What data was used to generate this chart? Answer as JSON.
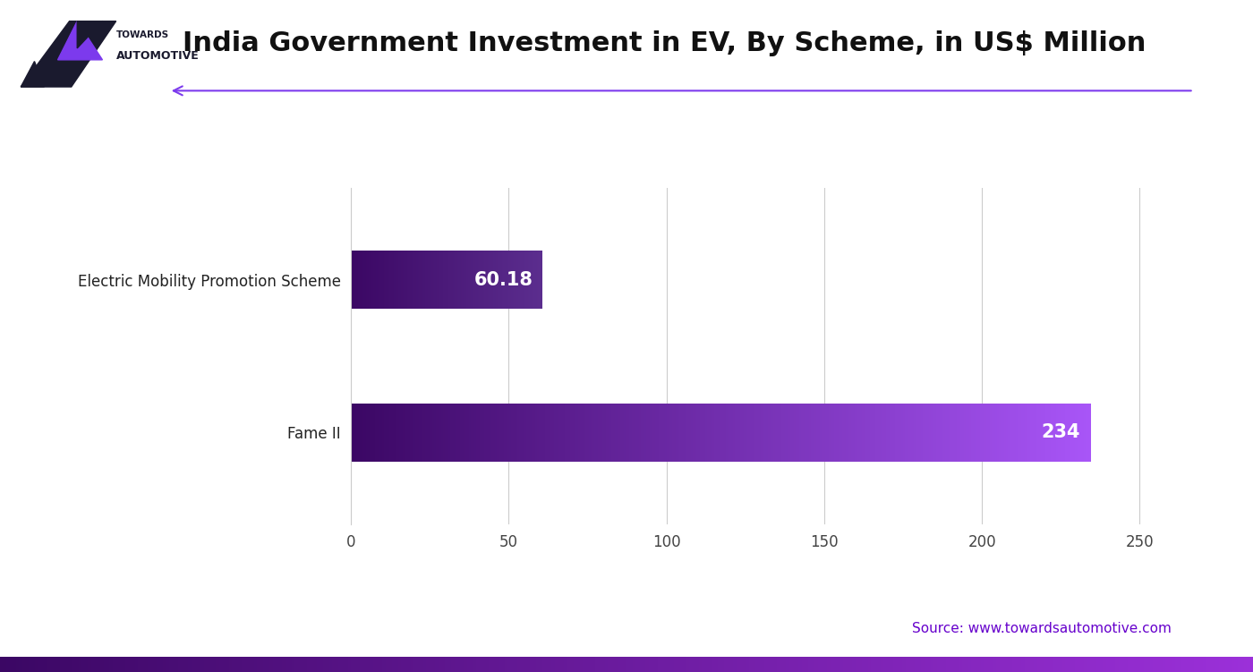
{
  "title": "India Government Investment in EV, By Scheme, in US$ Million",
  "categories": [
    "Fame II",
    "Electric Mobility Promotion Scheme"
  ],
  "values": [
    234,
    60.18
  ],
  "value_labels": [
    "234",
    "60.18"
  ],
  "bar_color_start": "#3b0764",
  "bar_color_end_fame": "#a855f7",
  "bar_color_end_emps": "#5b2d8e",
  "xlim": [
    0,
    270
  ],
  "xticks": [
    0,
    50,
    100,
    150,
    200,
    250
  ],
  "grid_color": "#cccccc",
  "bar_height": 0.38,
  "value_fontsize": 15,
  "label_fontsize": 12,
  "tick_fontsize": 12,
  "title_fontsize": 22,
  "background_color": "#ffffff",
  "source_text": "Source: www.towardsautomotive.com",
  "source_color": "#6600cc",
  "source_fontsize": 11,
  "footer_color_left": "#3b0764",
  "footer_color_right": "#9b30d9",
  "arrow_color": "#7c3aed",
  "logo_text_towards": "TOWARDS",
  "logo_text_auto": "AUTOMOTIVE"
}
